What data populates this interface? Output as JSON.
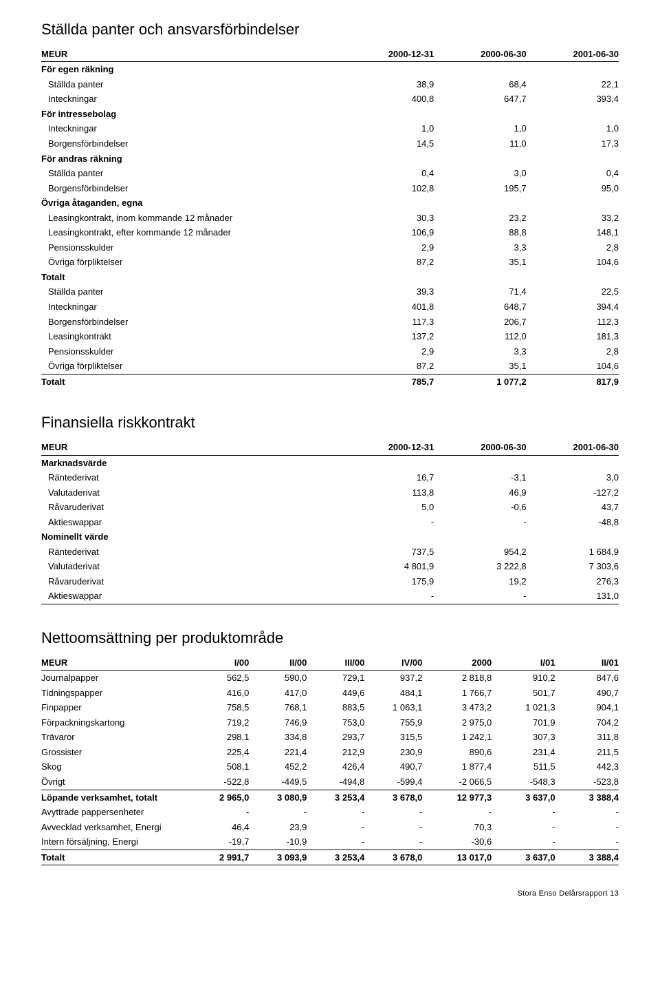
{
  "table1": {
    "title": "Ställda panter och ansvarsförbindelser",
    "headers": [
      "MEUR",
      "2000-12-31",
      "2000-06-30",
      "2001-06-30"
    ],
    "groups": [
      {
        "label": "För egen räkning",
        "bold": true,
        "rows": [
          {
            "label": "Ställda panter",
            "v": [
              "38,9",
              "68,4",
              "22,1"
            ]
          },
          {
            "label": "Inteckningar",
            "v": [
              "400,8",
              "647,7",
              "393,4"
            ]
          }
        ]
      },
      {
        "label": "För intressebolag",
        "bold": true,
        "rows": [
          {
            "label": "Inteckningar",
            "v": [
              "1,0",
              "1,0",
              "1,0"
            ]
          },
          {
            "label": "Borgensförbindelser",
            "v": [
              "14,5",
              "11,0",
              "17,3"
            ]
          }
        ]
      },
      {
        "label": "För andras räkning",
        "bold": true,
        "rows": [
          {
            "label": "Ställda panter",
            "v": [
              "0,4",
              "3,0",
              "0,4"
            ]
          },
          {
            "label": "Borgensförbindelser",
            "v": [
              "102,8",
              "195,7",
              "95,0"
            ]
          }
        ]
      },
      {
        "label": "Övriga åtaganden, egna",
        "bold": true,
        "rows": [
          {
            "label": "Leasingkontrakt, inom kommande 12 månader",
            "v": [
              "30,3",
              "23,2",
              "33,2"
            ]
          },
          {
            "label": "Leasingkontrakt, efter kommande 12 månader",
            "v": [
              "106,9",
              "88,8",
              "148,1"
            ]
          },
          {
            "label": "Pensionsskulder",
            "v": [
              "2,9",
              "3,3",
              "2,8"
            ]
          },
          {
            "label": "Övriga förpliktelser",
            "v": [
              "87,2",
              "35,1",
              "104,6"
            ]
          }
        ]
      },
      {
        "label": "Totalt",
        "bold": true,
        "rows": [
          {
            "label": "Ställda panter",
            "v": [
              "39,3",
              "71,4",
              "22,5"
            ]
          },
          {
            "label": "Inteckningar",
            "v": [
              "401,8",
              "648,7",
              "394,4"
            ]
          },
          {
            "label": "Borgensförbindelser",
            "v": [
              "117,3",
              "206,7",
              "112,3"
            ]
          },
          {
            "label": "Leasingkontrakt",
            "v": [
              "137,2",
              "112,0",
              "181,3"
            ]
          },
          {
            "label": "Pensionsskulder",
            "v": [
              "2,9",
              "3,3",
              "2,8"
            ]
          },
          {
            "label": "Övriga förpliktelser",
            "v": [
              "87,2",
              "35,1",
              "104,6"
            ]
          }
        ]
      }
    ],
    "total": {
      "label": "Totalt",
      "v": [
        "785,7",
        "1 077,2",
        "817,9"
      ]
    }
  },
  "table2": {
    "title": "Finansiella riskkontrakt",
    "headers": [
      "MEUR",
      "2000-12-31",
      "2000-06-30",
      "2001-06-30"
    ],
    "groups": [
      {
        "label": "Marknadsvärde",
        "bold": true,
        "rows": [
          {
            "label": "Räntederivat",
            "v": [
              "16,7",
              "-3,1",
              "3,0"
            ]
          },
          {
            "label": "Valutaderivat",
            "v": [
              "113,8",
              "46,9",
              "-127,2"
            ]
          },
          {
            "label": "Råvaruderivat",
            "v": [
              "5,0",
              "-0,6",
              "43,7"
            ]
          },
          {
            "label": "Aktieswappar",
            "v": [
              "-",
              "-",
              "-48,8"
            ]
          }
        ]
      },
      {
        "label": "Nominellt värde",
        "bold": true,
        "rows": [
          {
            "label": "Räntederivat",
            "v": [
              "737,5",
              "954,2",
              "1 684,9"
            ]
          },
          {
            "label": "Valutaderivat",
            "v": [
              "4 801,9",
              "3 222,8",
              "7 303,6"
            ]
          },
          {
            "label": "Råvaruderivat",
            "v": [
              "175,9",
              "19,2",
              "276,3"
            ]
          },
          {
            "label": "Aktieswappar",
            "v": [
              "-",
              "-",
              "131,0"
            ],
            "last": true
          }
        ]
      }
    ]
  },
  "table3": {
    "title": "Nettoomsättning per produktområde",
    "headers": [
      "MEUR",
      "I/00",
      "II/00",
      "III/00",
      "IV/00",
      "2000",
      "I/01",
      "II/01"
    ],
    "rows": [
      {
        "label": "Journalpapper",
        "v": [
          "562,5",
          "590,0",
          "729,1",
          "937,2",
          "2 818,8",
          "910,2",
          "847,6"
        ]
      },
      {
        "label": "Tidningspapper",
        "v": [
          "416,0",
          "417,0",
          "449,6",
          "484,1",
          "1 766,7",
          "501,7",
          "490,7"
        ]
      },
      {
        "label": "Finpapper",
        "v": [
          "758,5",
          "768,1",
          "883,5",
          "1 063,1",
          "3 473,2",
          "1 021,3",
          "904,1"
        ]
      },
      {
        "label": "Förpackningskartong",
        "v": [
          "719,2",
          "746,9",
          "753,0",
          "755,9",
          "2 975,0",
          "701,9",
          "704,2"
        ]
      },
      {
        "label": "Trävaror",
        "v": [
          "298,1",
          "334,8",
          "293,7",
          "315,5",
          "1 242,1",
          "307,3",
          "311,8"
        ]
      },
      {
        "label": "Grossister",
        "v": [
          "225,4",
          "221,4",
          "212,9",
          "230,9",
          "890,6",
          "231,4",
          "211,5"
        ]
      },
      {
        "label": "Skog",
        "v": [
          "508,1",
          "452,2",
          "426,4",
          "490,7",
          "1 877,4",
          "511,5",
          "442,3"
        ]
      },
      {
        "label": "Övrigt",
        "v": [
          "-522,8",
          "-449,5",
          "-494,8",
          "-599,4",
          "-2 066,5",
          "-548,3",
          "-523,8"
        ]
      }
    ],
    "subtotals": [
      {
        "label": "Löpande verksamhet, totalt",
        "bold": true,
        "v": [
          "2 965,0",
          "3 080,9",
          "3 253,4",
          "3 678,0",
          "12 977,3",
          "3 637,0",
          "3 388,4"
        ]
      },
      {
        "label": "Avyttrade pappersenheter",
        "v": [
          "-",
          "-",
          "-",
          "-",
          "-",
          "-",
          "-"
        ]
      },
      {
        "label": "Avvecklad verksamhet, Energi",
        "v": [
          "46,4",
          "23,9",
          "-",
          "-",
          "70,3",
          "-",
          "-"
        ]
      },
      {
        "label": "Intern försäljning, Energi",
        "v": [
          "-19,7",
          "-10,9",
          "-",
          "-",
          "-30,6",
          "-",
          "-"
        ]
      }
    ],
    "total": {
      "label": "Totalt",
      "bold": true,
      "v": [
        "2 991,7",
        "3 093,9",
        "3 253,4",
        "3 678,0",
        "13 017,0",
        "3 637,0",
        "3 388,4"
      ]
    }
  },
  "footer": "Stora Enso Delårsrapport  13"
}
